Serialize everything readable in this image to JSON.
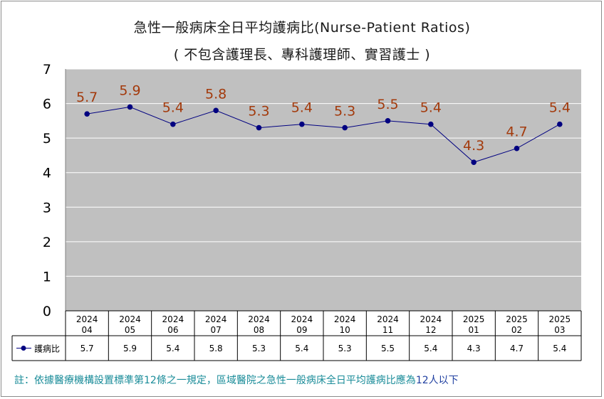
{
  "chart_data": {
    "type": "line",
    "title": "急性一般病床全日平均護病比(Nurse-Patient Ratios)",
    "subtitle": "( 不包含護理長、專科護理師、實習護士 )",
    "categories": [
      [
        "2024",
        "04"
      ],
      [
        "2024",
        "05"
      ],
      [
        "2024",
        "06"
      ],
      [
        "2024",
        "07"
      ],
      [
        "2024",
        "08"
      ],
      [
        "2024",
        "09"
      ],
      [
        "2024",
        "10"
      ],
      [
        "2024",
        "11"
      ],
      [
        "2024",
        "12"
      ],
      [
        "2025",
        "01"
      ],
      [
        "2025",
        "02"
      ],
      [
        "2025",
        "03"
      ]
    ],
    "series": [
      {
        "name": "護病比",
        "values": [
          5.7,
          5.9,
          5.4,
          5.8,
          5.3,
          5.4,
          5.3,
          5.5,
          5.4,
          4.3,
          4.7,
          5.4
        ],
        "labels": [
          "5.7",
          "5.9",
          "5.4",
          "5.8",
          "5.3",
          "5.4",
          "5.3",
          "5.5",
          "5.4",
          "4.3",
          "4.7",
          "5.4"
        ],
        "color": "#000080"
      }
    ],
    "yticks": [
      "0",
      "1",
      "2",
      "3",
      "4",
      "5",
      "6",
      "7"
    ],
    "ylim": [
      0,
      7
    ],
    "grid": true,
    "plot_background": "#c0c0c0",
    "data_label_color": "#a33a0c",
    "data_table": true
  },
  "footnote": {
    "main": "註：依據醫療機構設置標準第12條之一規定，區域醫院之急性一般病床全日平均護病比應為",
    "highlight": "12人以下"
  }
}
